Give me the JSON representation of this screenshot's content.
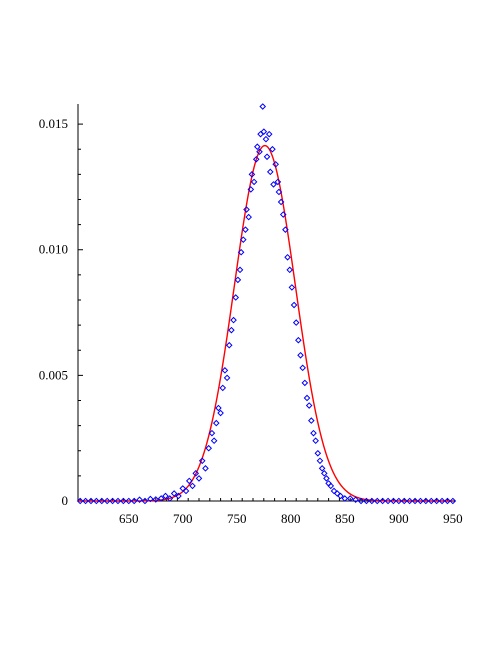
{
  "chart_data": {
    "type": "scatter",
    "title": "",
    "xlabel": "",
    "ylabel": "",
    "xlim": [
      603,
      952
    ],
    "ylim": [
      0,
      0.0158
    ],
    "x_ticks": [
      650,
      700,
      750,
      800,
      850,
      900,
      950
    ],
    "x_tick_labels": [
      "650",
      "700",
      "750",
      "800",
      "850",
      "900",
      "950"
    ],
    "y_ticks": [
      0,
      0.005,
      0.01,
      0.015
    ],
    "y_tick_labels": [
      "0",
      "0.005",
      "0.010",
      "0.015"
    ],
    "grid": false,
    "legend": "none",
    "colors": {
      "points": "#0000ff",
      "curve": "#ff0000",
      "axes": "#000000"
    },
    "series": [
      {
        "kind": "points",
        "marker": "diamond",
        "points": [
          [
            605,
            0
          ],
          [
            610,
            0
          ],
          [
            615,
            0
          ],
          [
            620,
            0
          ],
          [
            625,
            0
          ],
          [
            630,
            0
          ],
          [
            635,
            0
          ],
          [
            640,
            0
          ],
          [
            645,
            0
          ],
          [
            650,
            0
          ],
          [
            655,
            0
          ],
          [
            660,
            5e-05
          ],
          [
            665,
            0
          ],
          [
            670,
            8e-05
          ],
          [
            675,
            6e-05
          ],
          [
            680,
            0.0001
          ],
          [
            684,
            0.0002
          ],
          [
            688,
            0.0001
          ],
          [
            692,
            0.0003
          ],
          [
            696,
            0.0002
          ],
          [
            700,
            0.0005
          ],
          [
            703,
            0.0004
          ],
          [
            706,
            0.0008
          ],
          [
            709,
            0.0006
          ],
          [
            712,
            0.0011
          ],
          [
            715,
            0.0009
          ],
          [
            718,
            0.0016
          ],
          [
            721,
            0.0013
          ],
          [
            724,
            0.0021
          ],
          [
            727,
            0.0027
          ],
          [
            729,
            0.0024
          ],
          [
            731,
            0.0031
          ],
          [
            733,
            0.0037
          ],
          [
            735,
            0.0035
          ],
          [
            737,
            0.0045
          ],
          [
            739,
            0.0052
          ],
          [
            741,
            0.0049
          ],
          [
            743,
            0.0062
          ],
          [
            745,
            0.0068
          ],
          [
            747,
            0.0072
          ],
          [
            749,
            0.0081
          ],
          [
            751,
            0.0088
          ],
          [
            753,
            0.0092
          ],
          [
            754,
            0.0099
          ],
          [
            756,
            0.0104
          ],
          [
            758,
            0.0108
          ],
          [
            759,
            0.0116
          ],
          [
            761,
            0.0113
          ],
          [
            763,
            0.0124
          ],
          [
            764,
            0.013
          ],
          [
            766,
            0.0127
          ],
          [
            768,
            0.0136
          ],
          [
            769,
            0.0141
          ],
          [
            771,
            0.0139
          ],
          [
            772,
            0.0146
          ],
          [
            774,
            0.0157
          ],
          [
            775,
            0.0147
          ],
          [
            777,
            0.0144
          ],
          [
            778,
            0.0137
          ],
          [
            780,
            0.0146
          ],
          [
            781,
            0.0131
          ],
          [
            783,
            0.014
          ],
          [
            784,
            0.0126
          ],
          [
            786,
            0.0134
          ],
          [
            788,
            0.0127
          ],
          [
            789,
            0.0123
          ],
          [
            791,
            0.0119
          ],
          [
            793,
            0.0114
          ],
          [
            795,
            0.0108
          ],
          [
            797,
            0.0097
          ],
          [
            799,
            0.0092
          ],
          [
            801,
            0.0085
          ],
          [
            803,
            0.0078
          ],
          [
            805,
            0.0071
          ],
          [
            807,
            0.0064
          ],
          [
            809,
            0.0058
          ],
          [
            811,
            0.0053
          ],
          [
            813,
            0.0047
          ],
          [
            815,
            0.0041
          ],
          [
            817,
            0.0038
          ],
          [
            819,
            0.0032
          ],
          [
            821,
            0.0027
          ],
          [
            823,
            0.0024
          ],
          [
            825,
            0.0019
          ],
          [
            827,
            0.0016
          ],
          [
            829,
            0.0013
          ],
          [
            831,
            0.0011
          ],
          [
            833,
            0.0009
          ],
          [
            835,
            0.0007
          ],
          [
            837,
            0.0006
          ],
          [
            840,
            0.0004
          ],
          [
            843,
            0.0003
          ],
          [
            846,
            0.0002
          ],
          [
            850,
            0.0001
          ],
          [
            855,
            0.0001
          ],
          [
            860,
            5e-05
          ],
          [
            865,
            0
          ],
          [
            870,
            0
          ],
          [
            875,
            0
          ],
          [
            880,
            0
          ],
          [
            885,
            0
          ],
          [
            890,
            0
          ],
          [
            895,
            0
          ],
          [
            900,
            0
          ],
          [
            905,
            0
          ],
          [
            910,
            0
          ],
          [
            915,
            0
          ],
          [
            920,
            0
          ],
          [
            925,
            0
          ],
          [
            930,
            0
          ],
          [
            935,
            0
          ],
          [
            940,
            0
          ],
          [
            945,
            0
          ],
          [
            950,
            0
          ]
        ]
      },
      {
        "kind": "curve",
        "model": "normal",
        "mean": 776,
        "sd": 28.2
      }
    ]
  }
}
